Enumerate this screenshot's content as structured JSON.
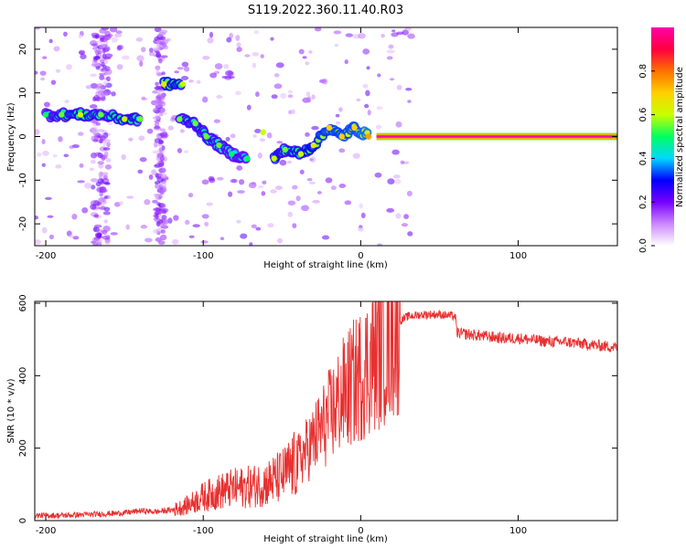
{
  "title": "S119.2022.360.11.40.R03",
  "colors": {
    "signal": "#e83030",
    "carrier": "#e02020",
    "axis": "#000000"
  },
  "chart_data": [
    {
      "type": "heatmap",
      "name": "spectrogram",
      "xlabel": "Height of straight line (km)",
      "ylabel": "Frequency (Hz)",
      "xlim": [
        -207,
        163
      ],
      "ylim": [
        -25,
        25
      ],
      "x_ticks": [
        -200,
        -100,
        0,
        100
      ],
      "y_ticks": [
        -20,
        -10,
        0,
        10,
        20
      ],
      "colorbar": {
        "label": "Normalized spectral amplitude",
        "range": [
          0,
          1
        ],
        "ticks": [
          0.0,
          0.2,
          0.4,
          0.6,
          0.8
        ],
        "colormap": [
          "#ffffff",
          "#cc88ff",
          "#7700ff",
          "#0000ff",
          "#00d8ff",
          "#00ff60",
          "#c8ff00",
          "#ffd000",
          "#ff7000",
          "#ff0040",
          "#ff00aa"
        ]
      },
      "features": {
        "carrier_line": {
          "x_start": 10,
          "x_end": 163,
          "frequency": 0,
          "amplitude": 1.0
        },
        "ridge": [
          {
            "x": -200,
            "f": 5,
            "a": 0.4
          },
          {
            "x": -190,
            "f": 5,
            "a": 0.45
          },
          {
            "x": -178,
            "f": 5,
            "a": 0.5
          },
          {
            "x": -165,
            "f": 5,
            "a": 0.45
          },
          {
            "x": -150,
            "f": 4,
            "a": 0.5
          },
          {
            "x": -140,
            "f": 4,
            "a": 0.45
          },
          {
            "x": -125,
            "f": 12,
            "a": 0.55
          },
          {
            "x": -113,
            "f": 12,
            "a": 0.5
          },
          {
            "x": -115,
            "f": 4,
            "a": 0.45
          },
          {
            "x": -105,
            "f": 3,
            "a": 0.45
          },
          {
            "x": -98,
            "f": 0,
            "a": 0.45
          },
          {
            "x": -90,
            "f": -2,
            "a": 0.45
          },
          {
            "x": -82,
            "f": -4,
            "a": 0.4
          },
          {
            "x": -72,
            "f": -5,
            "a": 0.4
          },
          {
            "x": -62,
            "f": 1,
            "a": 0.5
          },
          {
            "x": -55,
            "f": -5,
            "a": 0.5
          },
          {
            "x": -48,
            "f": -3,
            "a": 0.45
          },
          {
            "x": -38,
            "f": -4,
            "a": 0.5
          },
          {
            "x": -30,
            "f": -2,
            "a": 0.55
          },
          {
            "x": -20,
            "f": 2,
            "a": 0.6
          },
          {
            "x": -12,
            "f": 0,
            "a": 0.6
          },
          {
            "x": -4,
            "f": 2,
            "a": 0.6
          },
          {
            "x": 5,
            "f": 0,
            "a": 0.65
          }
        ]
      }
    },
    {
      "type": "line",
      "name": "snr",
      "xlabel": "Height of straight line (km)",
      "ylabel": "SNR (10 * v/v)",
      "xlim": [
        -207,
        163
      ],
      "ylim": [
        0,
        605
      ],
      "x_ticks": [
        -200,
        -100,
        0,
        100
      ],
      "y_ticks": [
        0,
        200,
        400,
        600
      ],
      "series": [
        {
          "x": [
            -207,
            -190,
            -170,
            -150,
            -140,
            -130,
            -120,
            -110,
            -100,
            -90,
            -80,
            -70,
            -60,
            -50,
            -40,
            -30,
            -20,
            -10,
            0,
            10,
            20,
            30,
            40,
            50,
            60,
            61,
            70,
            80,
            90,
            100,
            110,
            120,
            130,
            140,
            150,
            163
          ],
          "y": [
            15,
            15,
            18,
            22,
            28,
            25,
            30,
            45,
            70,
            85,
            95,
            100,
            110,
            130,
            170,
            230,
            300,
            370,
            420,
            480,
            540,
            565,
            570,
            570,
            565,
            520,
            515,
            510,
            505,
            505,
            500,
            495,
            495,
            490,
            485,
            480
          ]
        }
      ]
    }
  ]
}
